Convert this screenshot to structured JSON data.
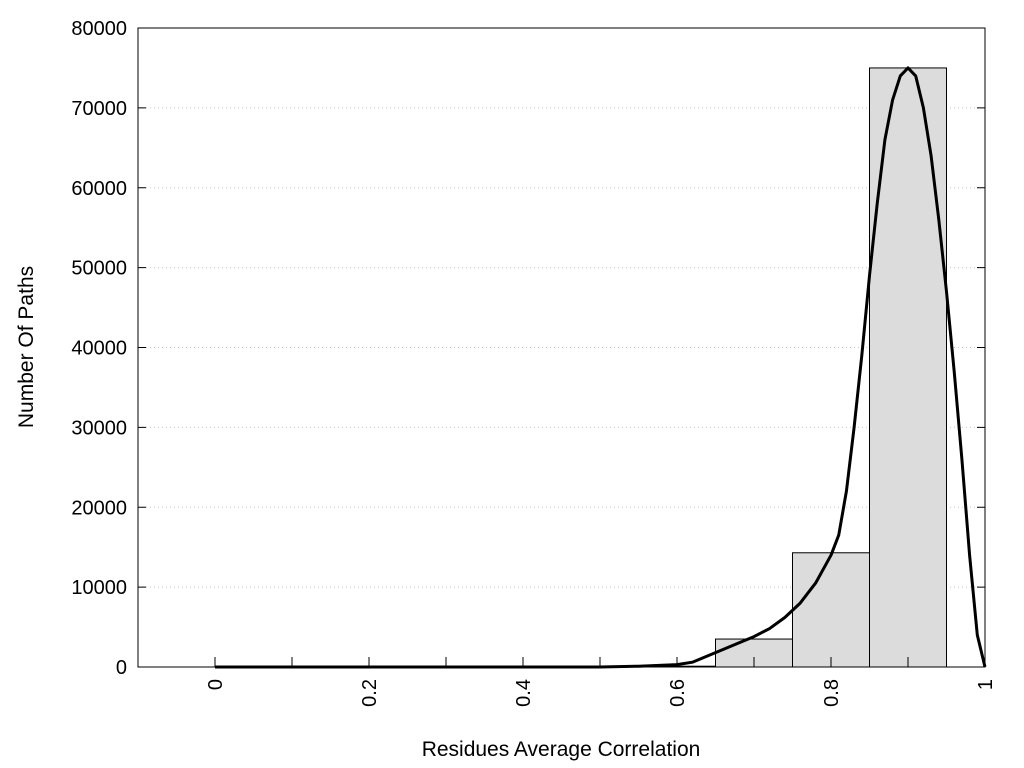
{
  "chart_data": {
    "type": "bar",
    "title": "",
    "xlabel": "Residues Average Correlation",
    "ylabel": "Number Of Paths",
    "xlim": [
      -0.1,
      1.0
    ],
    "ylim": [
      0,
      80000
    ],
    "x_ticks": [
      "0",
      "0.2",
      "0.4",
      "0.6",
      "0.8",
      "1"
    ],
    "x_tick_values": [
      0,
      0.2,
      0.4,
      0.6,
      0.8,
      1.0
    ],
    "x_minor_ticks": [
      0.1,
      0.3,
      0.5,
      0.7,
      0.9
    ],
    "y_ticks": [
      "0",
      "10000",
      "20000",
      "30000",
      "40000",
      "50000",
      "60000",
      "70000",
      "80000"
    ],
    "y_tick_values": [
      0,
      10000,
      20000,
      30000,
      40000,
      50000,
      60000,
      70000,
      80000
    ],
    "grid": "horizontal dotted",
    "bar_width": 0.1,
    "bar_color": "#dcdcdc",
    "bars": [
      {
        "x": 0.0,
        "value": 0
      },
      {
        "x": 0.1,
        "value": 0
      },
      {
        "x": 0.2,
        "value": 0
      },
      {
        "x": 0.3,
        "value": 0
      },
      {
        "x": 0.4,
        "value": 0
      },
      {
        "x": 0.5,
        "value": 0
      },
      {
        "x": 0.6,
        "value": 100
      },
      {
        "x": 0.7,
        "value": 3500
      },
      {
        "x": 0.8,
        "value": 14300
      },
      {
        "x": 0.9,
        "value": 75000
      }
    ],
    "curve": {
      "color": "#000000",
      "x": [
        0.0,
        0.1,
        0.2,
        0.3,
        0.4,
        0.5,
        0.55,
        0.6,
        0.62,
        0.65,
        0.68,
        0.7,
        0.72,
        0.74,
        0.76,
        0.78,
        0.8,
        0.81,
        0.82,
        0.83,
        0.84,
        0.85,
        0.86,
        0.87,
        0.88,
        0.89,
        0.9,
        0.91,
        0.92,
        0.93,
        0.94,
        0.95,
        0.96,
        0.97,
        0.98,
        0.99,
        1.0
      ],
      "y": [
        0,
        0,
        0,
        0,
        0,
        0,
        100,
        300,
        600,
        1800,
        3000,
        3800,
        4800,
        6200,
        8000,
        10500,
        14000,
        16500,
        22000,
        30000,
        39000,
        49000,
        58000,
        66000,
        71000,
        74000,
        75000,
        74000,
        70000,
        64000,
        56000,
        47000,
        37000,
        26000,
        14000,
        4000,
        0
      ]
    }
  }
}
